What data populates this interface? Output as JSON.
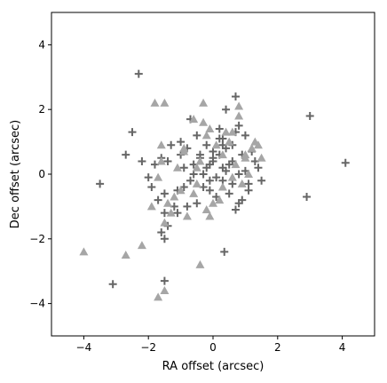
{
  "chart_data": {
    "type": "scatter",
    "title": "",
    "xlabel": "RA offset (arcsec)",
    "ylabel": "Dec offset (arcsec)",
    "xlim": [
      -5,
      5
    ],
    "ylim": [
      -5,
      5
    ],
    "xticks": [
      "−4",
      "−2",
      "0",
      "2",
      "4"
    ],
    "yticks": [
      "−4",
      "−2",
      "0",
      "2",
      "4"
    ],
    "grid": false,
    "legend": "none",
    "series": [
      {
        "marker": "plus",
        "color": "#666666",
        "x": [
          -2.3,
          -3.1,
          -3.5,
          -2.5,
          -2.7,
          -2.2,
          -2.0,
          -1.9,
          -1.8,
          -1.7,
          -1.6,
          -1.5,
          -1.5,
          -1.4,
          -1.5,
          -1.3,
          -1.2,
          -1.1,
          -1.0,
          -0.9,
          -0.8,
          -0.7,
          -0.7,
          -0.6,
          -0.5,
          -0.4,
          -0.3,
          -0.2,
          -0.1,
          0.0,
          0.1,
          0.2,
          0.3,
          0.4,
          0.5,
          0.6,
          0.7,
          0.8,
          0.9,
          1.0,
          1.1,
          1.3,
          0.4,
          0.7,
          0.3,
          0.8,
          -0.2,
          0.0,
          0.2,
          0.5,
          -0.1,
          0.1,
          0.3,
          -0.3,
          0.6,
          1.2,
          1.5,
          -0.8,
          -1.1,
          0.9,
          3.0,
          4.1,
          2.9,
          -1.4,
          -1.5,
          -1.6,
          0.35,
          -0.5,
          -0.9,
          1.0,
          0.2,
          -0.1,
          0.4,
          0.6,
          0.0,
          0.3,
          -0.4,
          0.8,
          1.1,
          1.4,
          0.7,
          -0.6,
          -1.0
        ],
        "y": [
          3.1,
          -3.4,
          -0.3,
          1.3,
          0.6,
          0.4,
          -0.1,
          -0.4,
          0.3,
          -0.8,
          0.5,
          -1.2,
          -3.3,
          0.4,
          -2.0,
          0.9,
          -1.0,
          -0.5,
          1.0,
          0.2,
          0.8,
          -0.2,
          1.7,
          0.0,
          1.2,
          0.5,
          -0.4,
          0.9,
          0.3,
          0.7,
          -0.1,
          1.1,
          0.2,
          0.8,
          -0.6,
          0.4,
          1.3,
          -0.9,
          0.6,
          0.1,
          -0.3,
          0.4,
          2.0,
          2.4,
          1.1,
          1.5,
          0.2,
          0.4,
          0.6,
          0.3,
          -0.5,
          -0.7,
          -0.2,
          0.0,
          0.9,
          0.7,
          -0.2,
          -1.0,
          -1.2,
          -0.8,
          1.8,
          0.35,
          -0.7,
          -1.6,
          -0.6,
          -1.8,
          -2.4,
          -0.9,
          -0.4,
          1.2,
          1.4,
          -0.2,
          0.1,
          -0.3,
          0.5,
          0.9,
          0.6,
          0.0,
          -0.5,
          0.2,
          -1.1,
          0.3,
          0.6
        ]
      },
      {
        "marker": "triangle",
        "color": "#a6a6a6",
        "x": [
          -4.0,
          -2.7,
          -2.2,
          -1.7,
          -1.5,
          -1.5,
          -1.8,
          -1.6,
          -1.3,
          -0.9,
          -0.6,
          -0.3,
          -0.4,
          -1.5,
          -1.2,
          -1.7,
          -1.6,
          -0.5,
          0.1,
          0.3,
          0.8,
          0.6,
          -0.1,
          0.5,
          1.0,
          1.2,
          1.4,
          0.9,
          1.1,
          0.2,
          -0.2,
          -0.8,
          -1.0,
          0.4,
          0.7,
          1.3,
          -0.4,
          0.0,
          -0.6,
          0.8,
          1.5,
          -0.9,
          -0.2,
          0.3,
          0.6,
          1.0,
          -0.5,
          -1.1,
          -0.3,
          -1.4,
          -1.9,
          -0.1
        ],
        "y": [
          -2.4,
          -2.5,
          -2.2,
          -3.8,
          -3.6,
          2.2,
          2.2,
          0.9,
          -1.2,
          0.7,
          1.7,
          2.2,
          -2.8,
          -1.5,
          -0.7,
          -0.1,
          0.4,
          0.2,
          0.9,
          -0.4,
          1.8,
          1.3,
          1.4,
          1.0,
          0.5,
          0.8,
          0.9,
          -0.3,
          0.0,
          -0.8,
          -1.1,
          -1.3,
          -0.5,
          1.3,
          0.3,
          1.0,
          0.4,
          -0.9,
          -0.6,
          2.1,
          0.5,
          0.8,
          1.2,
          0.6,
          -0.1,
          0.6,
          -0.3,
          0.2,
          1.6,
          -0.9,
          -1.0,
          -1.3
        ]
      }
    ]
  }
}
